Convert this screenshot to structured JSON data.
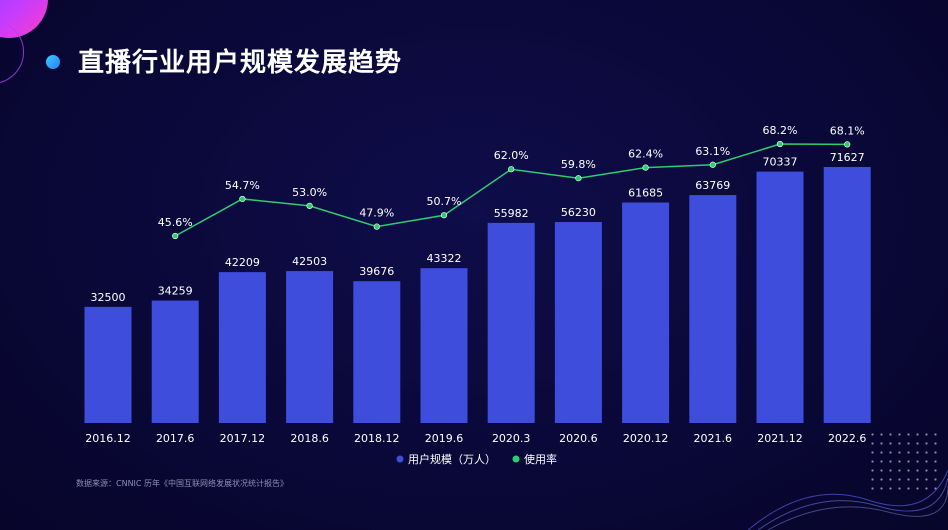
{
  "title": "直播行业用户规模发展趋势",
  "source": "数据来源：CNNIC 历年《中国互联网络发展状况统计报告》",
  "colors": {
    "bar": "#3f4ddc",
    "line": "#2ecc71",
    "bg": "#0a0838"
  },
  "chart_data": {
    "type": "bar",
    "categories": [
      "2016.12",
      "2017.6",
      "2017.12",
      "2018.6",
      "2018.12",
      "2019.6",
      "2020.3",
      "2020.6",
      "2020.12",
      "2021.6",
      "2021.12",
      "2022.6"
    ],
    "series": [
      {
        "name": "用户规模（万人）",
        "type": "bar",
        "values": [
          32500,
          34259,
          42209,
          42503,
          39676,
          43322,
          55982,
          56230,
          61685,
          63769,
          70337,
          71627
        ]
      },
      {
        "name": "使用率",
        "type": "line",
        "values": [
          null,
          45.6,
          54.7,
          53.0,
          47.9,
          50.7,
          62.0,
          59.8,
          62.4,
          63.1,
          68.2,
          68.1
        ],
        "labels": [
          "",
          "45.6%",
          "54.7%",
          "53.0%",
          "47.9%",
          "50.7%",
          "62.0%",
          "59.8%",
          "62.4%",
          "63.1%",
          "68.2%",
          "68.1%"
        ]
      }
    ],
    "legend": "bottom-center",
    "grid": false
  }
}
